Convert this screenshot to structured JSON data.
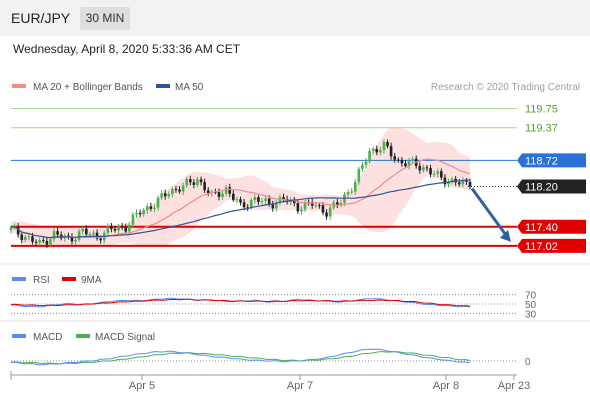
{
  "header": {
    "symbol": "EUR/JPY",
    "timeframe": "30 MIN"
  },
  "timestamp": "Wednesday, April 8, 2020 5:33:36 AM CET",
  "legend": {
    "ma20": "MA 20 + Bollinger Bands",
    "ma50": "MA 50",
    "source": "Research © 2020 Trading Central"
  },
  "colors": {
    "up": "#4caf50",
    "down": "#222222",
    "bb": "#fcd8d8",
    "ma20": "#f28a8a",
    "ma50": "#2f5597",
    "red": "#e00000",
    "blue": "#2b6fd8",
    "green": "#7cb342",
    "gray": "#9e9e9e",
    "arrow": "#2f5f9e"
  },
  "chart_data": [
    {
      "type": "candlestick",
      "title": "EUR/JPY",
      "ylim": [
        116.7,
        120.0
      ],
      "xticks": [
        "Apr 5",
        "Apr 7",
        "Apr 8",
        "Apr 23"
      ],
      "last_close": 118.2,
      "projection": {
        "from": 118.2,
        "to": 117.02
      },
      "levels": [
        {
          "value": 119.75,
          "label": "119.75",
          "kind": "resistance"
        },
        {
          "value": 119.37,
          "label": "119.37",
          "kind": "resistance"
        },
        {
          "value": 118.72,
          "label": "118.72",
          "kind": "pivot"
        },
        {
          "value": 118.2,
          "label": "118.20",
          "kind": "last"
        },
        {
          "value": 117.4,
          "label": "117.40",
          "kind": "support"
        },
        {
          "value": 117.02,
          "label": "117.02",
          "kind": "support"
        }
      ],
      "anchors": [
        117.35,
        117.2,
        117.05,
        117.25,
        117.15,
        117.3,
        117.2,
        117.35,
        117.4,
        117.7,
        117.85,
        118.1,
        118.2,
        118.35,
        118.0,
        118.15,
        117.8,
        117.95,
        117.85,
        117.95,
        117.8,
        117.85,
        117.7,
        117.9,
        118.3,
        118.9,
        119.0,
        118.7,
        118.65,
        118.55,
        118.35,
        118.3,
        118.2
      ]
    },
    {
      "type": "line",
      "title": "RSI",
      "series": [
        {
          "name": "RSI"
        },
        {
          "name": "9MA"
        }
      ],
      "ylim": [
        20,
        80
      ],
      "yticks": [
        70,
        50,
        30
      ],
      "rsi": [
        48,
        45,
        44,
        48,
        51,
        49,
        52,
        56,
        58,
        57,
        60,
        62,
        61,
        58,
        59,
        55,
        56,
        58,
        54,
        56,
        60,
        58,
        56,
        54,
        58,
        62,
        60,
        56,
        53,
        49,
        47,
        45,
        44
      ],
      "ma9": [
        49,
        48,
        47,
        47,
        48,
        49,
        51,
        53,
        55,
        56,
        58,
        59,
        60,
        59,
        58,
        57,
        56,
        56,
        56,
        56,
        57,
        57,
        57,
        56,
        57,
        58,
        58,
        57,
        55,
        52,
        49,
        47,
        45
      ]
    },
    {
      "type": "line",
      "title": "MACD",
      "series": [
        {
          "name": "MACD"
        },
        {
          "name": "MACD Signal"
        }
      ],
      "ylim": [
        -0.35,
        0.5
      ],
      "yticks": [
        0
      ],
      "macd": [
        -0.05,
        -0.08,
        -0.12,
        -0.1,
        -0.06,
        -0.02,
        0.02,
        0.08,
        0.16,
        0.22,
        0.28,
        0.3,
        0.26,
        0.2,
        0.14,
        0.1,
        0.05,
        0.02,
        0.0,
        -0.02,
        0.0,
        0.04,
        0.1,
        0.2,
        0.3,
        0.38,
        0.34,
        0.26,
        0.18,
        0.1,
        0.04,
        -0.02,
        -0.06
      ],
      "signal": [
        -0.04,
        -0.05,
        -0.07,
        -0.08,
        -0.08,
        -0.06,
        -0.03,
        0.01,
        0.06,
        0.12,
        0.18,
        0.23,
        0.25,
        0.24,
        0.21,
        0.17,
        0.13,
        0.09,
        0.05,
        0.02,
        0.01,
        0.02,
        0.05,
        0.1,
        0.17,
        0.25,
        0.29,
        0.28,
        0.24,
        0.18,
        0.12,
        0.06,
        0.01
      ]
    }
  ]
}
